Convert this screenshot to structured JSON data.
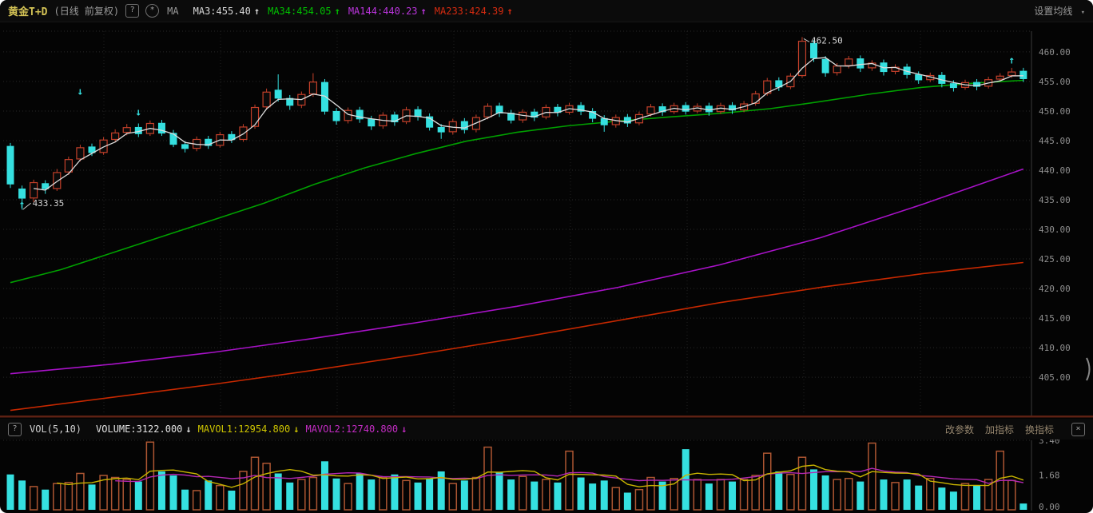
{
  "header": {
    "symbol": "黄金T+D",
    "mode": "(日线 前复权)",
    "help_icon": "?",
    "gear_icon": "*",
    "ma_label": "MA",
    "mas": [
      {
        "name": "MA3",
        "value": "455.40",
        "arrow": "↑",
        "color": "#d8d8d8"
      },
      {
        "name": "MA34",
        "value": "454.05",
        "arrow": "↑",
        "color": "#00c000"
      },
      {
        "name": "MA144",
        "value": "440.23",
        "arrow": "↑",
        "color": "#bb35dd"
      },
      {
        "name": "MA233",
        "value": "424.39",
        "arrow": "↑",
        "color": "#d62b10"
      }
    ],
    "settings_link": "设置均线",
    "chevron": "▾"
  },
  "volume_header": {
    "help_icon": "?",
    "indicator": "VOL(5,10)",
    "items": [
      {
        "name": "VOLUME",
        "value": "3122.000",
        "arrow": "↓",
        "color": "#e2e2e2"
      },
      {
        "name": "MAVOL1",
        "value": "12954.800",
        "arrow": "↓",
        "color": "#cdc400"
      },
      {
        "name": "MAVOL2",
        "value": "12740.800",
        "arrow": "↓",
        "color": "#c32cc3"
      }
    ],
    "links": [
      "改参数",
      "加指标",
      "换指标"
    ],
    "close_icon": "×"
  },
  "annotations": {
    "low": "433.35",
    "high": "462.50"
  },
  "price_axis": {
    "tick_labels": [
      "460.00",
      "455.00",
      "450.00",
      "445.00",
      "440.00",
      "435.00",
      "430.00",
      "425.00",
      "420.00",
      "415.00",
      "410.00",
      "405.00"
    ],
    "tick_values": [
      460,
      455,
      450,
      445,
      440,
      435,
      430,
      425,
      420,
      415,
      410,
      405
    ]
  },
  "volume_axis": {
    "tick_labels": [
      "3.40",
      "1.68",
      "0.00"
    ],
    "tick_values": [
      3.4,
      1.68,
      0.0
    ]
  },
  "chart_data": {
    "type": "candlestick+volume",
    "title": "黄金T+D 日线 前复权",
    "price_ylim": [
      398.5,
      463.5
    ],
    "volume_ylim": [
      0,
      3.4
    ],
    "legend": {
      "ma3": 455.4,
      "ma34": 454.05,
      "ma144": 440.23,
      "ma233": 424.39,
      "volume": 3122.0,
      "mavol1": 12954.8,
      "mavol2": 12740.8
    },
    "low_marker": {
      "index": 1,
      "price": 433.35,
      "label": "433.35"
    },
    "high_marker": {
      "index": 68,
      "price": 462.5,
      "label": "462.50"
    },
    "candles_ohlc": [
      [
        444.1,
        444.6,
        437.0,
        437.6
      ],
      [
        436.9,
        437.4,
        433.35,
        435.2
      ],
      [
        435.3,
        438.4,
        434.6,
        437.9
      ],
      [
        437.8,
        438.3,
        436.0,
        436.8
      ],
      [
        436.9,
        440.2,
        436.5,
        439.6
      ],
      [
        439.7,
        442.3,
        439.2,
        441.8
      ],
      [
        441.9,
        444.3,
        441.5,
        443.8
      ],
      [
        444.0,
        444.5,
        442.4,
        442.9
      ],
      [
        443.0,
        445.6,
        442.6,
        445.1
      ],
      [
        445.2,
        446.9,
        444.7,
        446.3
      ],
      [
        446.4,
        447.8,
        445.9,
        447.2
      ],
      [
        447.3,
        447.9,
        445.6,
        446.1
      ],
      [
        446.2,
        448.4,
        445.8,
        447.9
      ],
      [
        448.0,
        448.5,
        445.8,
        446.2
      ],
      [
        446.3,
        446.8,
        443.9,
        444.3
      ],
      [
        444.4,
        444.9,
        443.0,
        443.6
      ],
      [
        443.7,
        445.7,
        443.2,
        445.2
      ],
      [
        445.3,
        445.8,
        443.6,
        444.1
      ],
      [
        444.2,
        446.5,
        443.8,
        446.0
      ],
      [
        446.1,
        446.6,
        444.6,
        445.1
      ],
      [
        445.2,
        447.8,
        444.8,
        447.3
      ],
      [
        447.4,
        451.1,
        447.0,
        450.6
      ],
      [
        450.7,
        453.8,
        450.2,
        453.2
      ],
      [
        453.6,
        456.2,
        451.6,
        452.1
      ],
      [
        452.2,
        452.7,
        450.2,
        450.9
      ],
      [
        451.0,
        453.3,
        450.5,
        452.8
      ],
      [
        452.9,
        456.4,
        452.4,
        454.9
      ],
      [
        454.9,
        455.4,
        449.4,
        449.9
      ],
      [
        450.0,
        450.5,
        447.7,
        448.3
      ],
      [
        448.4,
        450.6,
        447.9,
        450.1
      ],
      [
        450.2,
        450.7,
        448.0,
        448.6
      ],
      [
        448.7,
        449.2,
        446.8,
        447.4
      ],
      [
        447.5,
        449.8,
        447.0,
        449.3
      ],
      [
        449.4,
        449.9,
        447.5,
        448.1
      ],
      [
        448.2,
        450.7,
        447.8,
        450.2
      ],
      [
        450.3,
        450.8,
        448.4,
        449.0
      ],
      [
        449.1,
        449.6,
        446.7,
        447.2
      ],
      [
        447.3,
        447.8,
        445.3,
        446.4
      ],
      [
        446.5,
        448.7,
        446.0,
        448.2
      ],
      [
        448.3,
        448.8,
        446.2,
        446.8
      ],
      [
        446.9,
        449.4,
        446.4,
        448.9
      ],
      [
        449.0,
        451.3,
        448.6,
        450.8
      ],
      [
        450.9,
        451.4,
        449.0,
        449.6
      ],
      [
        449.7,
        450.2,
        447.9,
        448.4
      ],
      [
        448.5,
        450.3,
        448.0,
        449.8
      ],
      [
        449.9,
        450.4,
        448.3,
        448.9
      ],
      [
        449.0,
        451.1,
        448.6,
        450.6
      ],
      [
        450.7,
        451.2,
        449.1,
        449.7
      ],
      [
        449.8,
        451.4,
        449.4,
        450.9
      ],
      [
        451.0,
        451.5,
        449.3,
        449.9
      ],
      [
        450.0,
        450.5,
        448.1,
        448.7
      ],
      [
        448.8,
        449.3,
        446.5,
        447.6
      ],
      [
        447.7,
        449.4,
        447.2,
        448.9
      ],
      [
        449.0,
        449.5,
        447.3,
        447.9
      ],
      [
        448.0,
        449.9,
        447.6,
        449.4
      ],
      [
        449.5,
        451.2,
        449.1,
        450.7
      ],
      [
        450.8,
        451.3,
        449.2,
        449.8
      ],
      [
        449.9,
        451.4,
        449.5,
        450.9
      ],
      [
        451.0,
        451.5,
        449.4,
        449.9
      ],
      [
        450.0,
        451.3,
        449.6,
        450.8
      ],
      [
        450.9,
        451.4,
        449.2,
        449.8
      ],
      [
        449.9,
        451.4,
        449.5,
        450.9
      ],
      [
        451.0,
        451.5,
        449.5,
        450.1
      ],
      [
        450.2,
        451.7,
        449.8,
        451.2
      ],
      [
        451.3,
        453.4,
        450.9,
        452.9
      ],
      [
        453.0,
        455.6,
        452.6,
        455.1
      ],
      [
        455.2,
        455.7,
        453.4,
        454.0
      ],
      [
        454.1,
        456.4,
        453.7,
        455.9
      ],
      [
        456.0,
        462.5,
        455.6,
        461.8
      ],
      [
        461.5,
        462.0,
        458.3,
        458.9
      ],
      [
        458.8,
        459.3,
        455.8,
        456.4
      ],
      [
        456.5,
        458.1,
        456.0,
        457.6
      ],
      [
        457.7,
        459.3,
        457.2,
        458.8
      ],
      [
        458.9,
        459.4,
        456.6,
        457.2
      ],
      [
        457.3,
        458.6,
        456.8,
        458.1
      ],
      [
        458.2,
        458.7,
        456.0,
        456.6
      ],
      [
        456.7,
        457.9,
        456.2,
        457.4
      ],
      [
        457.5,
        458.0,
        455.5,
        456.1
      ],
      [
        456.2,
        456.7,
        454.6,
        455.2
      ],
      [
        455.3,
        456.5,
        454.9,
        456.0
      ],
      [
        456.1,
        456.6,
        454.0,
        454.6
      ],
      [
        454.7,
        455.2,
        453.3,
        453.9
      ],
      [
        454.0,
        455.3,
        453.6,
        454.8
      ],
      [
        454.9,
        455.4,
        453.5,
        454.1
      ],
      [
        454.2,
        455.8,
        453.8,
        455.3
      ],
      [
        455.4,
        456.4,
        455.0,
        455.9
      ],
      [
        456.0,
        457.3,
        455.6,
        456.6
      ],
      [
        456.8,
        457.3,
        454.9,
        455.4
      ]
    ],
    "volumes": [
      1.75,
      1.45,
      1.15,
      1.0,
      1.3,
      1.35,
      1.8,
      1.25,
      1.7,
      1.6,
      1.5,
      1.4,
      3.35,
      1.9,
      1.7,
      1.0,
      0.95,
      1.45,
      1.2,
      0.95,
      1.9,
      2.6,
      2.3,
      1.8,
      1.35,
      1.5,
      1.6,
      2.4,
      1.55,
      1.3,
      1.8,
      1.5,
      1.6,
      1.75,
      1.45,
      1.35,
      1.55,
      1.9,
      1.3,
      1.45,
      1.6,
      3.1,
      1.85,
      1.5,
      1.65,
      1.4,
      1.5,
      1.35,
      2.9,
      1.6,
      1.3,
      1.45,
      1.1,
      0.85,
      1.0,
      1.6,
      1.4,
      1.55,
      3.0,
      1.5,
      1.3,
      1.5,
      1.4,
      1.5,
      1.7,
      2.8,
      1.9,
      1.75,
      2.6,
      2.0,
      1.7,
      1.5,
      1.55,
      1.4,
      3.3,
      1.5,
      1.35,
      1.5,
      1.2,
      1.55,
      1.1,
      0.9,
      1.3,
      1.2,
      1.5,
      2.9,
      1.45,
      0.31
    ],
    "ma34_path": [
      [
        0,
        421.0
      ],
      [
        0.05,
        423.2
      ],
      [
        0.1,
        426.0
      ],
      [
        0.15,
        428.8
      ],
      [
        0.2,
        431.6
      ],
      [
        0.25,
        434.4
      ],
      [
        0.3,
        437.6
      ],
      [
        0.35,
        440.4
      ],
      [
        0.4,
        442.8
      ],
      [
        0.45,
        444.9
      ],
      [
        0.5,
        446.4
      ],
      [
        0.55,
        447.5
      ],
      [
        0.6,
        448.3
      ],
      [
        0.65,
        449.0
      ],
      [
        0.7,
        449.6
      ],
      [
        0.75,
        450.4
      ],
      [
        0.8,
        451.6
      ],
      [
        0.85,
        452.9
      ],
      [
        0.9,
        454.0
      ],
      [
        0.95,
        454.7
      ],
      [
        1,
        455.2
      ]
    ],
    "ma144_path": [
      [
        0,
        405.6
      ],
      [
        0.1,
        407.2
      ],
      [
        0.2,
        409.2
      ],
      [
        0.3,
        411.6
      ],
      [
        0.4,
        414.2
      ],
      [
        0.5,
        417.0
      ],
      [
        0.6,
        420.2
      ],
      [
        0.7,
        424.0
      ],
      [
        0.8,
        428.6
      ],
      [
        0.9,
        434.2
      ],
      [
        1,
        440.2
      ]
    ],
    "ma233_path": [
      [
        0,
        399.4
      ],
      [
        0.1,
        401.6
      ],
      [
        0.2,
        403.8
      ],
      [
        0.3,
        406.2
      ],
      [
        0.4,
        408.8
      ],
      [
        0.5,
        411.6
      ],
      [
        0.6,
        414.6
      ],
      [
        0.7,
        417.6
      ],
      [
        0.8,
        420.2
      ],
      [
        0.9,
        422.5
      ],
      [
        1,
        424.4
      ]
    ],
    "signal_markers": [
      {
        "index": 1,
        "price": 434.2,
        "glyph": "↑"
      },
      {
        "index": 6,
        "price": 453.3,
        "glyph": "↓"
      },
      {
        "index": 11,
        "price": 449.8,
        "glyph": "↓"
      },
      {
        "index": 86,
        "price": 458.6,
        "glyph": "↑"
      }
    ],
    "colors": {
      "up_candle": "#c4402a",
      "down_candle": "#35e0e0",
      "vol_up_bar": "#ad5632",
      "vol_down_bar": "#35e0e0",
      "ma3": "#dcdcdc",
      "ma34": "#00a000",
      "ma144": "#a812c8",
      "ma233": "#c62800",
      "mavol1": "#c8b400",
      "mavol2": "#b428b4",
      "grid": "#282828",
      "axis_text": "#8f8f8f",
      "divider": "#5e2113",
      "background": "#040404"
    }
  }
}
